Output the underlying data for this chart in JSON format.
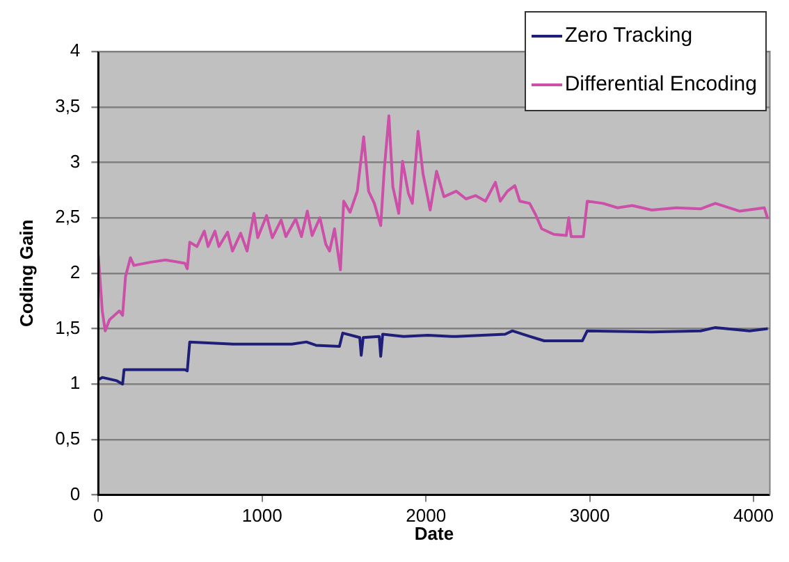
{
  "chart_data": {
    "type": "line",
    "xlabel": "Date",
    "ylabel": "Coding Gain",
    "xlim": [
      0,
      4100
    ],
    "xticks": [
      0,
      1000,
      2000,
      3000,
      4000
    ],
    "ylim": [
      0,
      4
    ],
    "yticks": [
      0,
      {
        "value": 0.5,
        "label": "0,5"
      },
      1,
      {
        "value": 1.5,
        "label": "1,5"
      },
      2,
      {
        "value": 2.5,
        "label": "2,5"
      },
      3,
      {
        "value": 3.5,
        "label": "3,5"
      },
      4
    ],
    "grid": "y",
    "legend": "top right",
    "marker": "none",
    "line_style": "solid",
    "series": [
      {
        "name": "Zero Tracking",
        "color": "#1f1f7a",
        "x": [
          0,
          24,
          113,
          148,
          157,
          528,
          543,
          558,
          825,
          1181,
          1270,
          1329,
          1472,
          1492,
          1596,
          1605,
          1617,
          1715,
          1724,
          1736,
          1863,
          2012,
          2160,
          2185,
          2484,
          2528,
          2633,
          2722,
          2872,
          2955,
          2985,
          3379,
          3677,
          3767,
          3976,
          4087
        ],
        "values": [
          1.04,
          1.06,
          1.03,
          1.0,
          1.13,
          1.13,
          1.12,
          1.38,
          1.36,
          1.36,
          1.38,
          1.35,
          1.34,
          1.46,
          1.42,
          1.26,
          1.42,
          1.43,
          1.25,
          1.45,
          1.43,
          1.44,
          1.43,
          1.43,
          1.45,
          1.48,
          1.43,
          1.39,
          1.39,
          1.39,
          1.48,
          1.47,
          1.48,
          1.51,
          1.48,
          1.5
        ]
      },
      {
        "name": "Differential Encoding",
        "color": "#cc4fa8",
        "x": [
          0,
          24,
          42,
          68,
          98,
          128,
          148,
          166,
          196,
          217,
          320,
          409,
          528,
          543,
          558,
          602,
          647,
          670,
          712,
          736,
          789,
          819,
          869,
          908,
          950,
          973,
          1027,
          1062,
          1116,
          1145,
          1205,
          1240,
          1276,
          1305,
          1353,
          1389,
          1412,
          1442,
          1478,
          1498,
          1537,
          1581,
          1620,
          1650,
          1685,
          1724,
          1745,
          1774,
          1798,
          1834,
          1857,
          1893,
          1917,
          1952,
          1982,
          2026,
          2065,
          2110,
          2185,
          2245,
          2304,
          2364,
          2424,
          2454,
          2498,
          2543,
          2573,
          2633,
          2669,
          2707,
          2782,
          2857,
          2872,
          2887,
          2961,
          2985,
          3081,
          3170,
          3260,
          3379,
          3528,
          3677,
          3767,
          3916,
          4066,
          4087
        ],
        "values": [
          2.16,
          1.66,
          1.48,
          1.58,
          1.62,
          1.66,
          1.62,
          1.97,
          2.14,
          2.07,
          2.1,
          2.12,
          2.09,
          2.04,
          2.28,
          2.24,
          2.38,
          2.24,
          2.38,
          2.24,
          2.37,
          2.2,
          2.36,
          2.2,
          2.54,
          2.32,
          2.52,
          2.32,
          2.48,
          2.33,
          2.49,
          2.33,
          2.56,
          2.34,
          2.5,
          2.26,
          2.2,
          2.4,
          2.03,
          2.65,
          2.55,
          2.74,
          3.23,
          2.74,
          2.63,
          2.43,
          2.92,
          3.42,
          2.78,
          2.54,
          3.01,
          2.72,
          2.63,
          3.28,
          2.9,
          2.57,
          2.92,
          2.69,
          2.74,
          2.67,
          2.7,
          2.65,
          2.82,
          2.65,
          2.74,
          2.79,
          2.65,
          2.63,
          2.53,
          2.4,
          2.35,
          2.34,
          2.5,
          2.33,
          2.33,
          2.65,
          2.63,
          2.59,
          2.61,
          2.57,
          2.59,
          2.58,
          2.63,
          2.56,
          2.59,
          2.49
        ]
      }
    ]
  }
}
